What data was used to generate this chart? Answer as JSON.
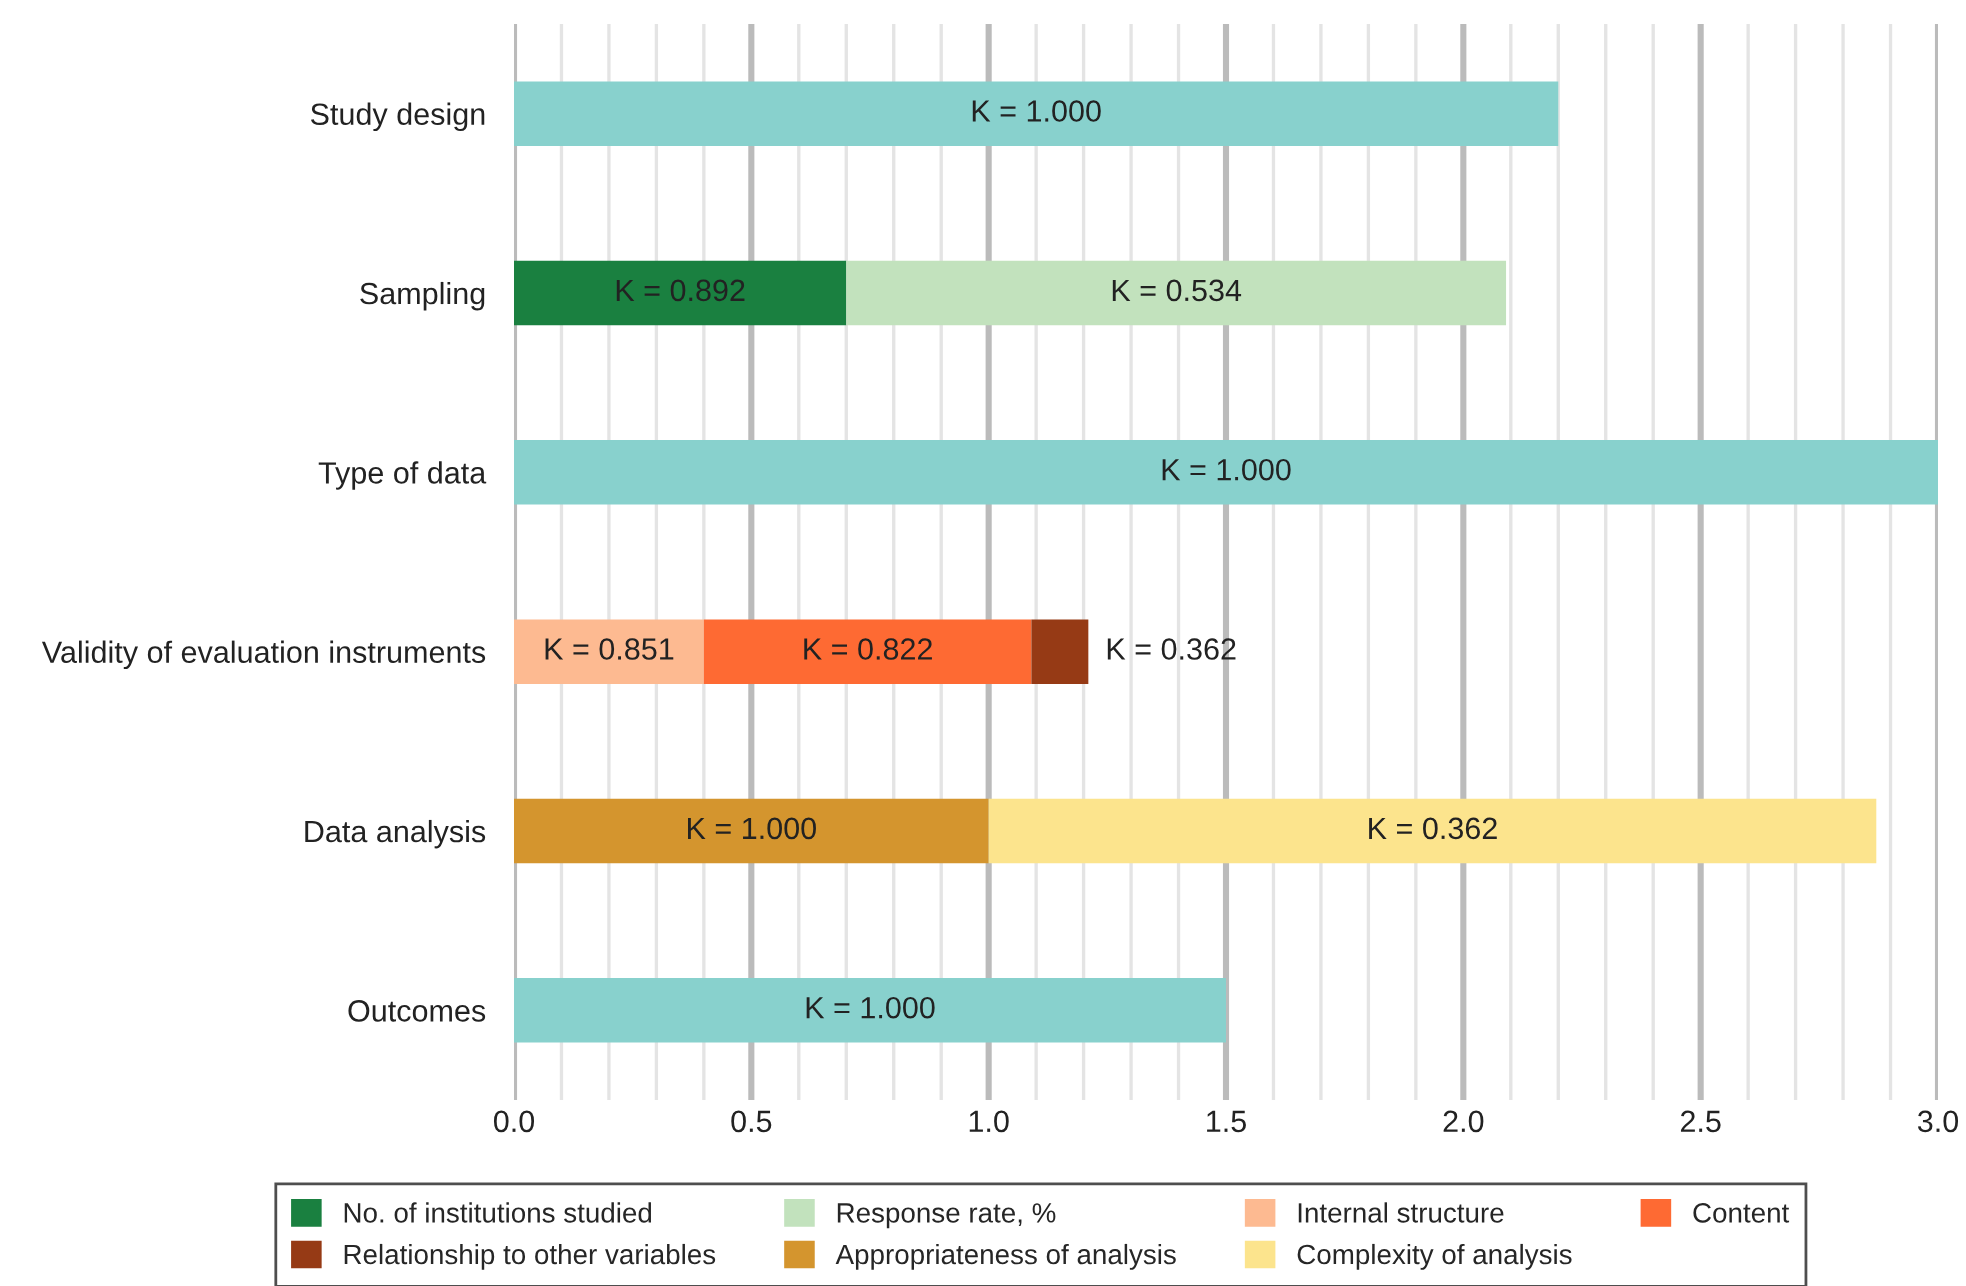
{
  "chart_data": {
    "type": "bar",
    "orientation": "horizontal",
    "stacked": true,
    "grid": "x",
    "legend": "bottom",
    "categories": [
      "Study design",
      "Sampling",
      "Type of data",
      "Validity of evaluation instruments",
      "Data analysis",
      "Outcomes"
    ],
    "xlim": [
      0,
      3.0
    ],
    "xticks": [
      {
        "value": 0.0,
        "label": "0.0"
      },
      {
        "value": 0.1,
        "label": null
      },
      {
        "value": 0.2,
        "label": null
      },
      {
        "value": 0.3,
        "label": null
      },
      {
        "value": 0.4,
        "label": null
      },
      {
        "value": 0.5,
        "label": "0.5"
      },
      {
        "value": 0.6,
        "label": null
      },
      {
        "value": 0.7,
        "label": null
      },
      {
        "value": 0.8,
        "label": null
      },
      {
        "value": 0.9,
        "label": null
      },
      {
        "value": 1.0,
        "label": "1.0"
      },
      {
        "value": 1.1,
        "label": null
      },
      {
        "value": 1.2,
        "label": null
      },
      {
        "value": 1.3,
        "label": null
      },
      {
        "value": 1.4,
        "label": null
      },
      {
        "value": 1.5,
        "label": "1.5"
      },
      {
        "value": 1.6,
        "label": null
      },
      {
        "value": 1.7,
        "label": null
      },
      {
        "value": 1.8,
        "label": null
      },
      {
        "value": 1.9,
        "label": null
      },
      {
        "value": 2.0,
        "label": "2.0"
      },
      {
        "value": 2.1,
        "label": null
      },
      {
        "value": 2.2,
        "label": null
      },
      {
        "value": 2.3,
        "label": null
      },
      {
        "value": 2.4,
        "label": null
      },
      {
        "value": 2.5,
        "label": "2.5"
      },
      {
        "value": 2.6,
        "label": null
      },
      {
        "value": 2.7,
        "label": null
      },
      {
        "value": 2.8,
        "label": null
      },
      {
        "value": 2.9,
        "label": null
      },
      {
        "value": 3.0,
        "label": "3.0"
      }
    ],
    "series": [
      {
        "color": "#88d1cd",
        "values": [
          2.2,
          null,
          3.0,
          null,
          null,
          1.5
        ]
      },
      {
        "name": "No. of institutions studied",
        "color": "#1a8040",
        "values": [
          null,
          0.7,
          null,
          null,
          null,
          null
        ]
      },
      {
        "name": "Response rate, %",
        "color": "#c2e2bd",
        "values": [
          null,
          1.39,
          null,
          null,
          null,
          null
        ]
      },
      {
        "name": "Internal structure",
        "color": "#fdba91",
        "values": [
          null,
          null,
          null,
          0.4,
          null,
          null
        ]
      },
      {
        "name": "Content",
        "color": "#fe6a33",
        "values": [
          null,
          null,
          null,
          0.69,
          null,
          null
        ]
      },
      {
        "name": "Relationship to other variables",
        "color": "#963a15",
        "values": [
          null,
          null,
          null,
          0.12,
          null,
          null
        ]
      },
      {
        "name": "Appropriateness of analysis",
        "color": "#d4952e",
        "values": [
          null,
          null,
          null,
          null,
          1.0,
          null
        ]
      },
      {
        "name": "Complexity of analysis",
        "color": "#fce48d",
        "values": [
          null,
          null,
          null,
          null,
          1.87,
          null
        ]
      }
    ],
    "annotations": [
      "K = 1.000",
      "K = 1.000",
      "K = 1.000",
      "K = 0.892",
      "K = 0.534",
      "K = 0.851",
      "K = 0.822",
      "K = 0.362",
      "K = 1.000",
      "K = 0.362"
    ]
  }
}
